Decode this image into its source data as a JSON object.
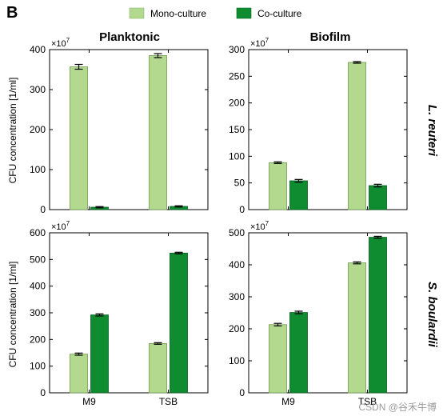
{
  "figure": {
    "panel_label": "B",
    "watermark": "CSDN @谷禾牛博",
    "ylabel": "CFU concentration [1/ml]",
    "col_titles": [
      "Planktonic",
      "Biofilm"
    ],
    "row_labels": [
      "L. reuteri",
      "S. boulardii"
    ],
    "legend": [
      {
        "label": "Mono-culture",
        "color": "#b3d98f"
      },
      {
        "label": "Co-culture",
        "color": "#0e8c2f"
      }
    ],
    "colors": {
      "mono": "#b3d98f",
      "co": "#0e8c2f",
      "edge": "#000000"
    }
  },
  "chart_data": [
    {
      "id": "lr-planktonic",
      "type": "bar",
      "categories": [
        "M9",
        "TSB"
      ],
      "series": [
        {
          "name": "Mono-culture",
          "values": [
            357,
            385
          ],
          "errors": [
            6,
            5
          ]
        },
        {
          "name": "Co-culture",
          "values": [
            6,
            8
          ],
          "errors": [
            1.5,
            1.5
          ]
        }
      ],
      "ylim": [
        0,
        400
      ],
      "yticks": [
        "0",
        "100",
        "200",
        "300",
        "400"
      ],
      "multiplier": "×10",
      "multiplier_exp": "7",
      "show_xticks": false
    },
    {
      "id": "lr-biofilm",
      "type": "bar",
      "categories": [
        "M9",
        "TSB"
      ],
      "series": [
        {
          "name": "Mono-culture",
          "values": [
            88,
            276
          ],
          "errors": [
            1.5,
            1.5
          ]
        },
        {
          "name": "Co-culture",
          "values": [
            54,
            45
          ],
          "errors": [
            2.5,
            2.5
          ]
        }
      ],
      "ylim": [
        0,
        300
      ],
      "yticks": [
        "0",
        "50",
        "100",
        "150",
        "200",
        "250",
        "300"
      ],
      "multiplier": "×10",
      "multiplier_exp": "7",
      "show_xticks": false
    },
    {
      "id": "sb-planktonic",
      "type": "bar",
      "categories": [
        "M9",
        "TSB"
      ],
      "series": [
        {
          "name": "Mono-culture",
          "values": [
            145,
            185
          ],
          "errors": [
            4,
            3
          ]
        },
        {
          "name": "Co-culture",
          "values": [
            292,
            524
          ],
          "errors": [
            4,
            3
          ]
        }
      ],
      "ylim": [
        0,
        600
      ],
      "yticks": [
        "0",
        "100",
        "200",
        "300",
        "400",
        "500",
        "600"
      ],
      "multiplier": "×10",
      "multiplier_exp": "7",
      "show_xticks": true
    },
    {
      "id": "sb-biofilm",
      "type": "bar",
      "categories": [
        "M9",
        "TSB"
      ],
      "series": [
        {
          "name": "Mono-culture",
          "values": [
            213,
            406
          ],
          "errors": [
            4,
            3
          ]
        },
        {
          "name": "Co-culture",
          "values": [
            251,
            486
          ],
          "errors": [
            4,
            3
          ]
        }
      ],
      "ylim": [
        0,
        500
      ],
      "yticks": [
        "0",
        "100",
        "200",
        "300",
        "400",
        "500"
      ],
      "multiplier": "×10",
      "multiplier_exp": "7",
      "show_xticks": true
    }
  ]
}
